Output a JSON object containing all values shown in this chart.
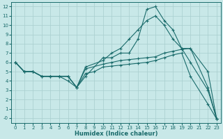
{
  "xlabel": "Humidex (Indice chaleur)",
  "bg_color": "#c8e8e8",
  "line_color": "#1a6b6b",
  "grid_color": "#a8cece",
  "xlim": [
    -0.5,
    23.5
  ],
  "ylim": [
    -0.5,
    12.5
  ],
  "xticks": [
    0,
    1,
    2,
    3,
    4,
    5,
    6,
    7,
    8,
    9,
    10,
    11,
    12,
    13,
    14,
    15,
    16,
    17,
    18,
    19,
    20,
    21,
    22,
    23
  ],
  "yticks": [
    0,
    1,
    2,
    3,
    4,
    5,
    6,
    7,
    8,
    9,
    10,
    11,
    12
  ],
  "ytick_labels": [
    "-0",
    "1",
    "2",
    "3",
    "4",
    "5",
    "6",
    "7",
    "8",
    "9",
    "10",
    "11",
    "12"
  ],
  "line1_x": [
    0,
    1,
    2,
    3,
    4,
    5,
    6,
    7,
    8,
    10,
    11,
    12,
    13,
    14,
    15,
    16,
    17,
    18,
    19,
    20,
    22,
    23
  ],
  "line1_y": [
    6,
    5,
    5,
    4.5,
    4.5,
    4.5,
    4.5,
    3.3,
    4.5,
    6.5,
    6.5,
    7,
    7,
    8.5,
    11.7,
    12,
    10.5,
    9.5,
    7.5,
    6,
    3.0,
    -0.1
  ],
  "line2_x": [
    0,
    1,
    2,
    3,
    4,
    5,
    6,
    7,
    8,
    10,
    11,
    12,
    13,
    14,
    15,
    16,
    17,
    18,
    19,
    20,
    22,
    23
  ],
  "line2_y": [
    6,
    5,
    5,
    4.5,
    4.5,
    4.5,
    4.5,
    3.3,
    5.3,
    5.8,
    6.0,
    6.2,
    6.3,
    6.4,
    6.5,
    6.6,
    7.0,
    7.2,
    7.4,
    7.5,
    5.0,
    -0.1
  ],
  "line3_x": [
    0,
    1,
    2,
    3,
    4,
    5,
    6,
    7,
    8,
    9,
    10,
    11,
    12,
    13,
    14,
    15,
    16,
    17,
    18,
    19,
    20,
    22,
    23
  ],
  "line3_y": [
    6,
    5,
    5,
    4.5,
    4.5,
    4.5,
    4.5,
    3.3,
    4.8,
    5.0,
    5.5,
    5.6,
    5.7,
    5.8,
    5.9,
    6.0,
    6.2,
    6.5,
    6.8,
    7.0,
    4.5,
    1.5,
    -0.1
  ],
  "line4_x": [
    0,
    1,
    2,
    3,
    4,
    5,
    6,
    7,
    8,
    10,
    11,
    12,
    13,
    14,
    15,
    16,
    17,
    18,
    19,
    20,
    22,
    23
  ],
  "line4_y": [
    6,
    5,
    5,
    4.5,
    4.5,
    4.5,
    4,
    3.3,
    5.5,
    6.2,
    7.0,
    7.5,
    8.5,
    9.5,
    10.5,
    11.0,
    10.0,
    8.5,
    7.5,
    7.5,
    3.3,
    -0.1
  ]
}
